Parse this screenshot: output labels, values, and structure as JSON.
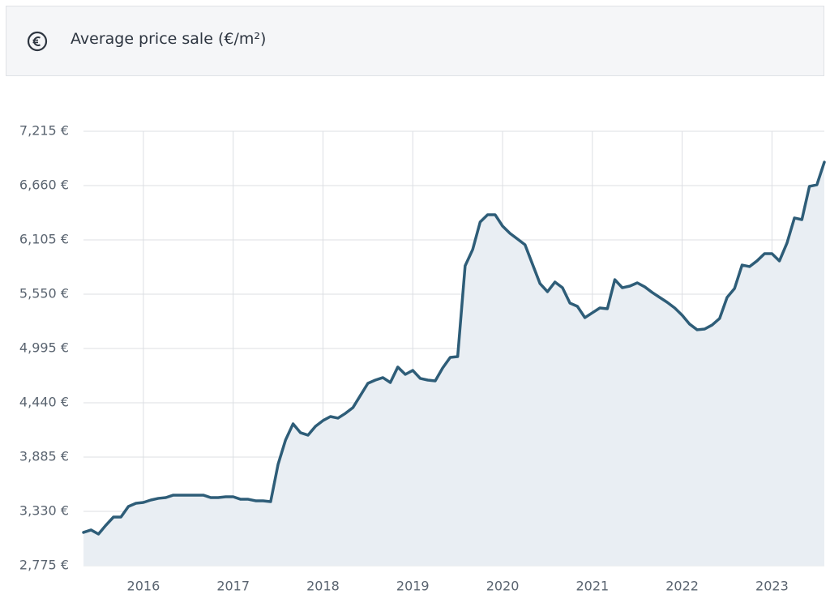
{
  "header": {
    "title": "Average price sale (€/m²)"
  },
  "chart_data": {
    "type": "area",
    "x": [
      2015.333,
      2015.417,
      2015.5,
      2015.583,
      2015.667,
      2015.75,
      2015.833,
      2015.917,
      2016.0,
      2016.083,
      2016.167,
      2016.25,
      2016.333,
      2016.417,
      2016.5,
      2016.583,
      2016.667,
      2016.75,
      2016.833,
      2016.917,
      2017.0,
      2017.083,
      2017.167,
      2017.25,
      2017.333,
      2017.417,
      2017.5,
      2017.583,
      2017.667,
      2017.75,
      2017.833,
      2017.917,
      2018.0,
      2018.083,
      2018.167,
      2018.25,
      2018.333,
      2018.417,
      2018.5,
      2018.583,
      2018.667,
      2018.75,
      2018.833,
      2018.917,
      2019.0,
      2019.083,
      2019.167,
      2019.25,
      2019.333,
      2019.417,
      2019.5,
      2019.583,
      2019.667,
      2019.75,
      2019.833,
      2019.917,
      2020.0,
      2020.083,
      2020.167,
      2020.25,
      2020.333,
      2020.417,
      2020.5,
      2020.583,
      2020.667,
      2020.75,
      2020.833,
      2020.917,
      2021.0,
      2021.083,
      2021.167,
      2021.25,
      2021.333,
      2021.417,
      2021.5,
      2021.583,
      2021.667,
      2021.75,
      2021.833,
      2021.917,
      2022.0,
      2022.083,
      2022.167,
      2022.25,
      2022.333,
      2022.417,
      2022.5,
      2022.583,
      2022.667,
      2022.75,
      2022.833,
      2022.917,
      2023.0,
      2023.083,
      2023.167,
      2023.25,
      2023.333,
      2023.417,
      2023.5,
      2023.583
    ],
    "series": [
      {
        "color": "#2e5d78",
        "fill": "#e9eef3",
        "values": [
          3115,
          3140,
          3098,
          3189,
          3272,
          3272,
          3380,
          3413,
          3421,
          3446,
          3463,
          3471,
          3496,
          3496,
          3496,
          3496,
          3496,
          3471,
          3471,
          3479,
          3479,
          3454,
          3454,
          3438,
          3438,
          3429,
          3811,
          4059,
          4225,
          4134,
          4109,
          4200,
          4258,
          4299,
          4283,
          4332,
          4390,
          4515,
          4639,
          4672,
          4697,
          4647,
          4805,
          4730,
          4771,
          4689,
          4672,
          4664,
          4796,
          4904,
          4912,
          5840,
          6006,
          6287,
          6362,
          6362,
          6246,
          6171,
          6113,
          6055,
          5857,
          5658,
          5575,
          5674,
          5616,
          5459,
          5426,
          5310,
          5360,
          5409,
          5401,
          5699,
          5616,
          5633,
          5666,
          5625,
          5567,
          5517,
          5467,
          5409,
          5335,
          5244,
          5186,
          5194,
          5235,
          5302,
          5517,
          5608,
          5848,
          5832,
          5890,
          5964,
          5964,
          5890,
          6072,
          6329,
          6312,
          6652,
          6668,
          6900
        ]
      }
    ],
    "xlim": [
      2015.333,
      2023.583
    ],
    "xticks": [
      2016,
      2017,
      2018,
      2019,
      2020,
      2021,
      2022,
      2023
    ],
    "ylim": [
      2775,
      7215
    ],
    "yticks": [
      {
        "value": 2775,
        "label": "2,775 €"
      },
      {
        "value": 3330,
        "label": "3,330 €"
      },
      {
        "value": 3885,
        "label": "3,885 €"
      },
      {
        "value": 4440,
        "label": "4,440 €"
      },
      {
        "value": 4995,
        "label": "4,995 €"
      },
      {
        "value": 5550,
        "label": "5,550 €"
      },
      {
        "value": 6105,
        "label": "6,105 €"
      },
      {
        "value": 6660,
        "label": "6,660 €"
      },
      {
        "value": 7215,
        "label": "7,215 €"
      }
    ],
    "grid": true
  }
}
